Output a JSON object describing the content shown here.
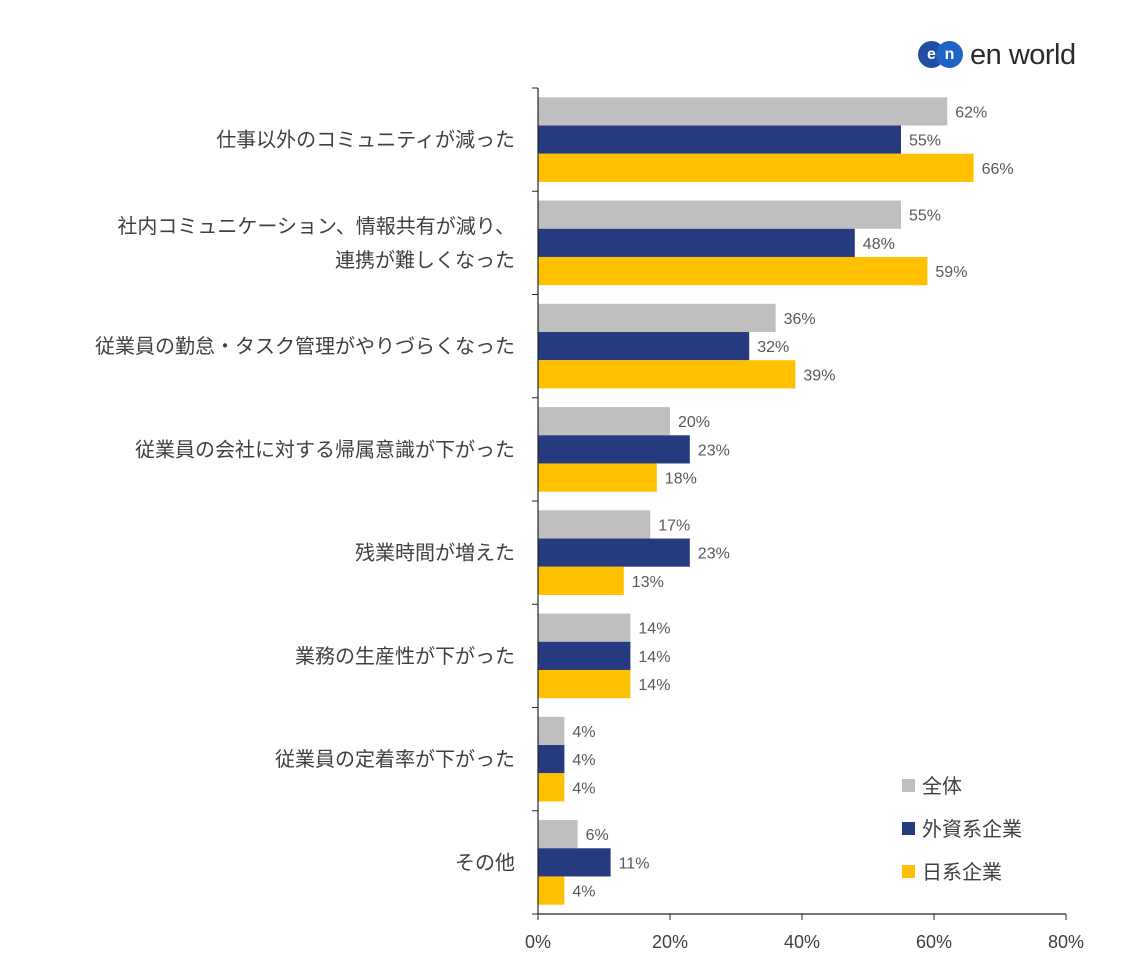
{
  "logo": {
    "mark_left": "e",
    "mark_right": "n",
    "text": "en world"
  },
  "colors": {
    "series_all": "#bfbfbf",
    "series_foreign": "#263a80",
    "series_japanese": "#ffc000"
  },
  "chart_data": {
    "type": "bar",
    "orientation": "horizontal",
    "title": "",
    "xlabel": "",
    "ylabel": "",
    "xlim": [
      0,
      80
    ],
    "x_ticks": [
      "0%",
      "20%",
      "40%",
      "60%",
      "80%"
    ],
    "grid": false,
    "legend_position": "bottom-right",
    "categories": [
      [
        "仕事以外のコミュニティが減った"
      ],
      [
        "社内コミュニケーション、情報共有が減り、",
        "連携が難しくなった"
      ],
      [
        "従業員の勤怠・タスク管理がやりづらくなった"
      ],
      [
        "従業員の会社に対する帰属意識が下がった"
      ],
      [
        "残業時間が増えた"
      ],
      [
        "業務の生産性が下がった"
      ],
      [
        "従業員の定着率が下がった"
      ],
      [
        "その他"
      ]
    ],
    "series": [
      {
        "name": "全体",
        "color": "#bfbfbf",
        "values": [
          62,
          55,
          36,
          20,
          17,
          14,
          4,
          6
        ]
      },
      {
        "name": "外資系企業",
        "color": "#263a80",
        "values": [
          55,
          48,
          32,
          23,
          23,
          14,
          4,
          11
        ]
      },
      {
        "name": "日系企業",
        "color": "#ffc000",
        "values": [
          66,
          59,
          39,
          18,
          13,
          14,
          4,
          4
        ]
      }
    ],
    "value_suffix": "%"
  }
}
